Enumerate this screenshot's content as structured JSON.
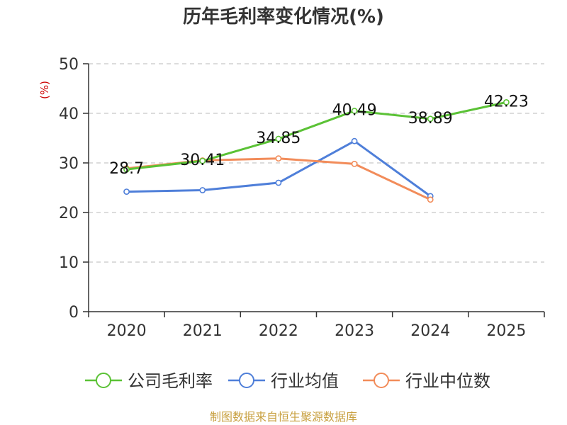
{
  "chart_data": {
    "type": "line",
    "title": "历年毛利率变化情况(%)",
    "ylabel": "(%)",
    "xlabel": "",
    "categories": [
      "2020",
      "2021",
      "2022",
      "2023",
      "2024",
      "2025"
    ],
    "ylim": [
      0,
      50
    ],
    "yticks": [
      0,
      10,
      20,
      30,
      40,
      50
    ],
    "grid": true,
    "legend_position": "bottom",
    "series": [
      {
        "name": "公司毛利率",
        "color": "#5bc236",
        "values": [
          28.7,
          30.41,
          34.85,
          40.49,
          38.89,
          42.23
        ],
        "labels": [
          "28.7",
          "30.41",
          "34.85",
          "40.49",
          "38.89",
          "42.23"
        ]
      },
      {
        "name": "行业均值",
        "color": "#4f7fd9",
        "values": [
          24.2,
          24.5,
          26.0,
          34.4,
          23.3,
          null
        ]
      },
      {
        "name": "行业中位数",
        "color": "#f28c5a",
        "values": [
          28.9,
          30.5,
          30.9,
          29.8,
          22.6,
          null
        ]
      }
    ]
  },
  "ylabel_color": "#cc0000",
  "source": {
    "text": "制图数据来自恒生聚源数据库",
    "color": "#c8a040"
  }
}
